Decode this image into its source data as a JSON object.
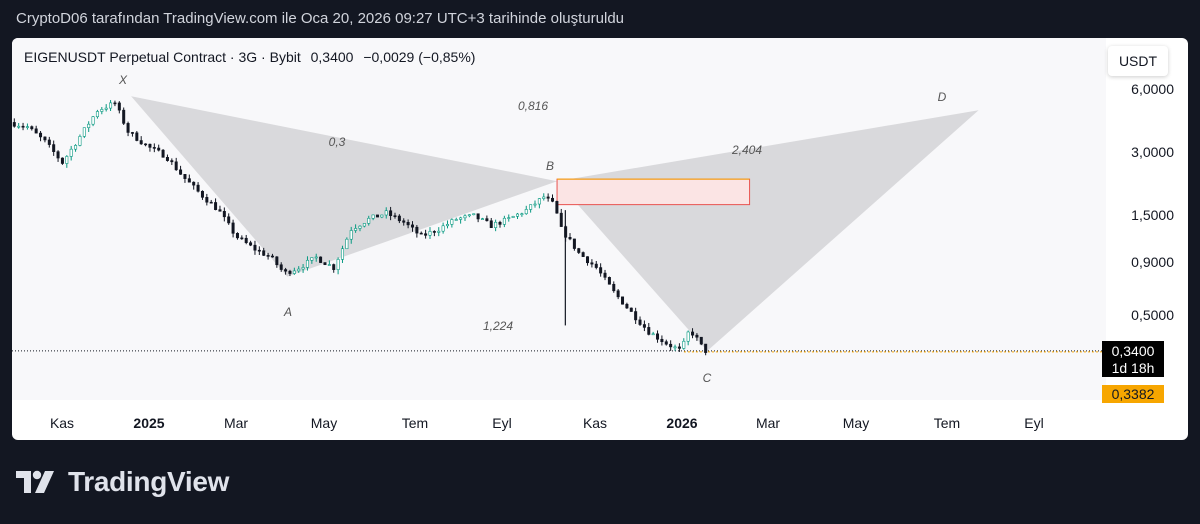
{
  "header": {
    "caption": "CryptoD06 tarafından TradingView.com ile Oca 20, 2026 09:27 UTC+3 tarihinde oluşturuldu"
  },
  "symbol": {
    "name": "EIGENUSDT Perpetual Contract · 3G · Bybit",
    "last": "0,3400",
    "change": "−0,0029 (−0,85%)"
  },
  "currency_button": "USDT",
  "price_badges": {
    "last": "0,3400",
    "countdown": "1d 18h",
    "reference": "0,3382"
  },
  "colors": {
    "up": "#089981",
    "down": "#131722",
    "accent": "#f7a600",
    "pattern_fill": "#d3d3d6",
    "zone_border": "#e8524f",
    "zone_fill": "#fbe4e4"
  },
  "brand": {
    "name": "TradingView"
  },
  "chart_data": {
    "type": "line",
    "title": "EIGENUSDT Perpetual Contract · 3G · Bybit",
    "y_scale": "log",
    "ylim": [
      0.3,
      8.0
    ],
    "y_ticks": [
      {
        "value": 6.0,
        "label": "6,0000"
      },
      {
        "value": 3.0,
        "label": "3,0000"
      },
      {
        "value": 1.5,
        "label": "1,5000"
      },
      {
        "value": 0.9,
        "label": "0,9000"
      },
      {
        "value": 0.5,
        "label": "0,5000"
      }
    ],
    "x_ticks": [
      {
        "date": "2024-11-01",
        "label": "Kas",
        "bold": false
      },
      {
        "date": "2025-01-01",
        "label": "2025",
        "bold": true
      },
      {
        "date": "2025-03-01",
        "label": "Mar",
        "bold": false
      },
      {
        "date": "2025-05-01",
        "label": "May",
        "bold": false
      },
      {
        "date": "2025-07-01",
        "label": "Tem",
        "bold": false
      },
      {
        "date": "2025-09-01",
        "label": "Eyl",
        "bold": false
      },
      {
        "date": "2025-11-01",
        "label": "Kas",
        "bold": false
      },
      {
        "date": "2026-01-01",
        "label": "2026",
        "bold": true
      },
      {
        "date": "2026-03-01",
        "label": "Mar",
        "bold": false
      },
      {
        "date": "2026-05-01",
        "label": "May",
        "bold": false
      },
      {
        "date": "2026-07-01",
        "label": "Tem",
        "bold": false
      },
      {
        "date": "2026-09-01",
        "label": "Eyl",
        "bold": false
      }
    ],
    "series": [
      {
        "values": [
          [
            "2024-10-01",
            4.2
          ],
          [
            "2024-10-13",
            4.0
          ],
          [
            "2024-10-25",
            3.4
          ],
          [
            "2024-11-06",
            2.7
          ],
          [
            "2024-11-18",
            3.6
          ],
          [
            "2024-11-30",
            4.8
          ],
          [
            "2024-12-12",
            5.2
          ],
          [
            "2024-12-21",
            3.8
          ],
          [
            "2025-01-04",
            3.2
          ],
          [
            "2025-01-16",
            2.9
          ],
          [
            "2025-01-28",
            2.3
          ],
          [
            "2025-02-09",
            1.9
          ],
          [
            "2025-02-21",
            1.6
          ],
          [
            "2025-03-05",
            1.2
          ],
          [
            "2025-03-17",
            1.05
          ],
          [
            "2025-03-29",
            0.95
          ],
          [
            "2025-04-07",
            0.8
          ],
          [
            "2025-04-17",
            0.85
          ],
          [
            "2025-04-29",
            0.95
          ],
          [
            "2025-05-11",
            0.85
          ],
          [
            "2025-05-23",
            1.3
          ],
          [
            "2025-06-04",
            1.45
          ],
          [
            "2025-06-16",
            1.55
          ],
          [
            "2025-06-28",
            1.4
          ],
          [
            "2025-07-10",
            1.2
          ],
          [
            "2025-07-22",
            1.3
          ],
          [
            "2025-08-03",
            1.45
          ],
          [
            "2025-08-15",
            1.5
          ],
          [
            "2025-08-27",
            1.35
          ],
          [
            "2025-09-08",
            1.45
          ],
          [
            "2025-09-20",
            1.6
          ],
          [
            "2025-10-02",
            1.85
          ],
          [
            "2025-10-09",
            1.7
          ],
          [
            "2025-10-14",
            1.3
          ],
          [
            "2025-10-26",
            1.0
          ],
          [
            "2025-11-07",
            0.85
          ],
          [
            "2025-11-19",
            0.65
          ],
          [
            "2025-12-01",
            0.52
          ],
          [
            "2025-12-13",
            0.42
          ],
          [
            "2025-12-25",
            0.37
          ],
          [
            "2026-01-04",
            0.34
          ],
          [
            "2026-01-10",
            0.43
          ],
          [
            "2026-01-16",
            0.38
          ],
          [
            "2026-01-20",
            0.34
          ]
        ]
      }
    ],
    "pattern": {
      "points": [
        {
          "name": "X",
          "date": "2024-12-21",
          "price": 5.6
        },
        {
          "name": "A",
          "date": "2025-04-07",
          "price": 0.77
        },
        {
          "name": "B",
          "date": "2025-10-09",
          "price": 2.2
        },
        {
          "name": "C",
          "date": "2026-01-20",
          "price": 0.34
        },
        {
          "name": "D",
          "date": "2026-07-25",
          "price": 4.8
        }
      ],
      "ratios": [
        {
          "label": "0,3",
          "date": "2025-03-21",
          "price": 3.4
        },
        {
          "label": "0,816",
          "date": "2025-09-01",
          "price": 4.6
        },
        {
          "label": "1,224",
          "date": "2025-08-05",
          "price": 0.48
        },
        {
          "label": "2,404",
          "date": "2026-03-05",
          "price": 2.95
        }
      ]
    },
    "zone": {
      "date_start": "2025-10-09",
      "date_end": "2026-02-18",
      "price_top": 2.25,
      "price_bottom": 1.7
    },
    "annotations": [
      "X",
      "A",
      "B",
      "C",
      "D",
      "0,3",
      "0,816",
      "1,224",
      "2,404"
    ],
    "grid": false,
    "legend": "none"
  }
}
